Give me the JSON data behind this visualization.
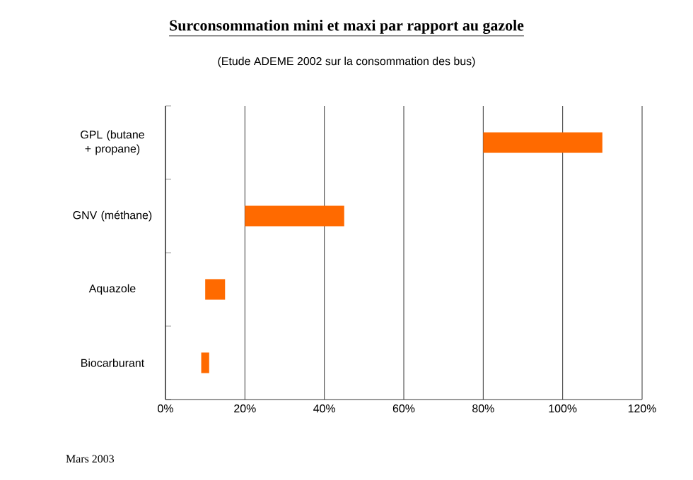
{
  "chart_data": {
    "type": "bar",
    "orientation": "horizontal",
    "title": "Surconsommation mini et maxi par rapport au gazole",
    "subtitle": "(Etude ADEME 2002 sur la consommation des bus)",
    "categories": [
      "GPL (butane + propane)",
      "GNV (méthane)",
      "Aquazole",
      "Biocarburant"
    ],
    "base": [
      80,
      20,
      10,
      9
    ],
    "values": [
      30,
      25,
      5,
      2
    ],
    "color": "#ff6a00",
    "xlim": [
      0,
      120
    ],
    "xticks": [
      {
        "value": 0,
        "label": "0%"
      },
      {
        "value": 20,
        "label": "20%"
      },
      {
        "value": 40,
        "label": "40%"
      },
      {
        "value": 60,
        "label": "60%"
      },
      {
        "value": 80,
        "label": "80%"
      },
      {
        "value": 100,
        "label": "100%"
      },
      {
        "value": 120,
        "label": "120%"
      }
    ],
    "grid": "x",
    "annotations": [
      "Mars 2003"
    ]
  }
}
